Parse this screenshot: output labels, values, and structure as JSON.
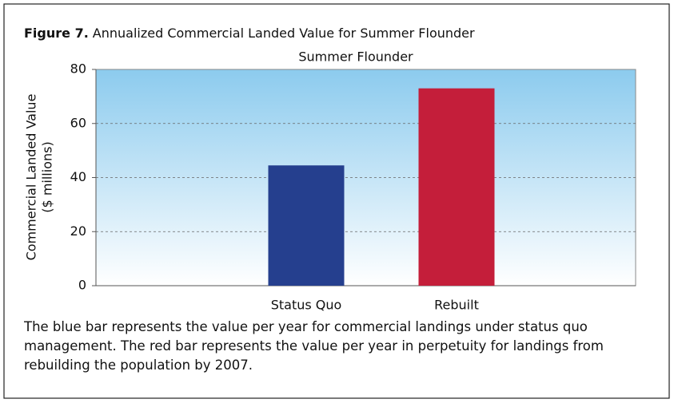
{
  "chart_data": {
    "type": "bar",
    "figure_label": "Figure 7.",
    "figure_title": "Annualized Commercial Landed Value for Summer Flounder",
    "title": "Summer Flounder",
    "ylabel": [
      "Commercial Landed Value",
      "($ millions)"
    ],
    "categories": [
      "Status Quo",
      "Rebuilt"
    ],
    "values": [
      44.5,
      73
    ],
    "colors": [
      "#253f8e",
      "#c41e3a"
    ],
    "ylim": [
      0,
      80
    ],
    "yticks": [
      0,
      20,
      40,
      60,
      80
    ],
    "grid": true,
    "caption": "The blue bar represents the value per year for commercial landings under status quo management. The red bar represents the value per year in perpetuity for landings from rebuilding the population by 2007."
  }
}
